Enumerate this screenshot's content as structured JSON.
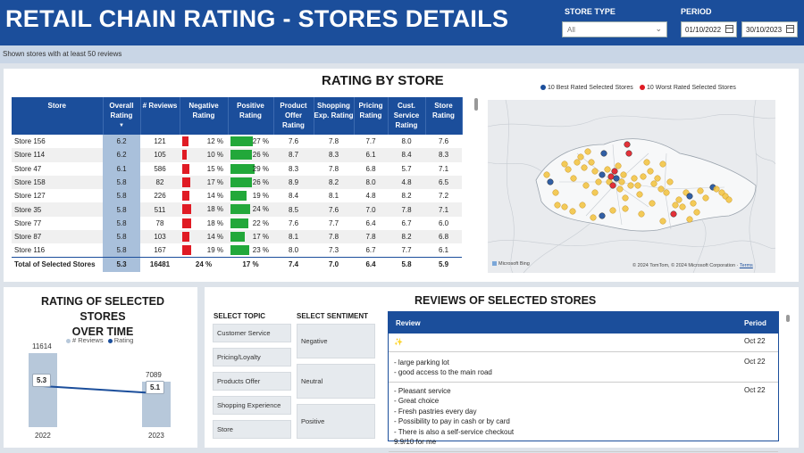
{
  "header": {
    "title": "RETAIL CHAIN RATING - STORES DETAILS",
    "store_type_label": "STORE TYPE",
    "store_type_value": "All",
    "period_label": "PERIOD",
    "period_from": "01/10/2022",
    "period_to": "30/10/2023",
    "brand_color": "#1b4e9b"
  },
  "subheader": {
    "note": "Shown stores with at least 50 reviews"
  },
  "rating_by_store": {
    "title": "RATING BY STORE",
    "columns": [
      "Store",
      "Overall Rating",
      "# Reviews",
      "Negative Rating",
      "Positive Rating",
      "Product Offer Rating",
      "Shopping Exp. Rating",
      "Pricing Rating",
      "Cust. Service Rating",
      "Store Rating"
    ],
    "rows": [
      {
        "store": "Store 156",
        "overall": "6.2",
        "reviews": "121",
        "neg": "12 %",
        "neg_pct": 12,
        "pos": "27 %",
        "pos_pct": 27,
        "product": "7.6",
        "shopping": "7.8",
        "pricing": "7.7",
        "service": "8.0",
        "storer": "7.6"
      },
      {
        "store": "Store 114",
        "overall": "6.2",
        "reviews": "105",
        "neg": "10 %",
        "neg_pct": 10,
        "pos": "26 %",
        "pos_pct": 26,
        "product": "8.7",
        "shopping": "8.3",
        "pricing": "6.1",
        "service": "8.4",
        "storer": "8.3"
      },
      {
        "store": "Store 47",
        "overall": "6.1",
        "reviews": "586",
        "neg": "15 %",
        "neg_pct": 15,
        "pos": "29 %",
        "pos_pct": 29,
        "product": "8.3",
        "shopping": "7.8",
        "pricing": "6.8",
        "service": "5.7",
        "storer": "7.1"
      },
      {
        "store": "Store 158",
        "overall": "5.8",
        "reviews": "82",
        "neg": "17 %",
        "neg_pct": 17,
        "pos": "26 %",
        "pos_pct": 26,
        "product": "8.9",
        "shopping": "8.2",
        "pricing": "8.0",
        "service": "4.8",
        "storer": "6.5"
      },
      {
        "store": "Store 127",
        "overall": "5.8",
        "reviews": "226",
        "neg": "14 %",
        "neg_pct": 14,
        "pos": "19 %",
        "pos_pct": 19,
        "product": "8.4",
        "shopping": "8.1",
        "pricing": "4.8",
        "service": "8.2",
        "storer": "7.2"
      },
      {
        "store": "Store 35",
        "overall": "5.8",
        "reviews": "511",
        "neg": "18 %",
        "neg_pct": 18,
        "pos": "24 %",
        "pos_pct": 24,
        "product": "8.5",
        "shopping": "7.6",
        "pricing": "7.0",
        "service": "7.8",
        "storer": "7.1"
      },
      {
        "store": "Store 77",
        "overall": "5.8",
        "reviews": "78",
        "neg": "18 %",
        "neg_pct": 18,
        "pos": "22 %",
        "pos_pct": 22,
        "product": "7.6",
        "shopping": "7.7",
        "pricing": "6.4",
        "service": "6.7",
        "storer": "6.0"
      },
      {
        "store": "Store 87",
        "overall": "5.8",
        "reviews": "103",
        "neg": "14 %",
        "neg_pct": 14,
        "pos": "17 %",
        "pos_pct": 17,
        "product": "8.1",
        "shopping": "7.8",
        "pricing": "7.8",
        "service": "8.2",
        "storer": "6.8"
      },
      {
        "store": "Store 116",
        "overall": "5.8",
        "reviews": "167",
        "neg": "19 %",
        "neg_pct": 19,
        "pos": "23 %",
        "pos_pct": 23,
        "product": "8.0",
        "shopping": "7.3",
        "pricing": "6.7",
        "service": "7.7",
        "storer": "6.1"
      }
    ],
    "total": {
      "store": "Total of Selected Stores",
      "overall": "5.3",
      "reviews": "16481",
      "neg": "24 %",
      "pos": "17 %",
      "product": "7.4",
      "shopping": "7.0",
      "pricing": "6.4",
      "service": "5.8",
      "storer": "5.9"
    },
    "neg_color": "#e01b24",
    "pos_color": "#22a83a"
  },
  "map": {
    "legend_best": "10 Best Rated Selected Stores",
    "legend_worst": "10 Worst Rated Selected Stores",
    "best_color": "#1b4e9b",
    "worst_color": "#e01b24",
    "store_color": "#f2c23c",
    "attribution_left": "Microsoft Bing",
    "attribution_right": "© 2024 TomTom, © 2024 Microsoft Corporation",
    "terms": "Terms"
  },
  "over_time": {
    "title_line1": "RATING OF SELECTED STORES",
    "title_line2": "OVER TIME",
    "legend_reviews": "# Reviews",
    "legend_rating": "Rating",
    "chart_data": {
      "type": "bar",
      "categories": [
        "2022",
        "2023"
      ],
      "series": [
        {
          "name": "# Reviews",
          "values": [
            11614,
            7089
          ]
        },
        {
          "name": "Rating",
          "values": [
            5.3,
            5.1
          ]
        }
      ]
    },
    "labels": {
      "r2022": "11614",
      "r2023": "7089",
      "rating2022": "5.3",
      "rating2023": "5.1",
      "x2022": "2022",
      "x2023": "2023"
    }
  },
  "reviews": {
    "title": "REVIEWS OF SELECTED STORES",
    "topic_header": "SELECT TOPIC",
    "sentiment_header": "SELECT SENTIMENT",
    "topics": [
      "Customer Service",
      "Pricing/Loyalty",
      "Products Offer",
      "Shopping Experience",
      "Store"
    ],
    "sentiments": [
      "Negative",
      "Neutral",
      "Positive"
    ],
    "col_review": "Review",
    "col_period": "Period",
    "rows": [
      {
        "text": "✨",
        "period": "Oct 22"
      },
      {
        "text": "- large parking lot\n- good access to the main road",
        "period": "Oct 22"
      },
      {
        "text": "- Pleasant service\n- Great choice\n- Fresh pastries every day\n- Possibility to pay in cash or by card\n- There is also a self-service checkout\n9.9/10 for me",
        "period": "Oct 22"
      }
    ]
  }
}
